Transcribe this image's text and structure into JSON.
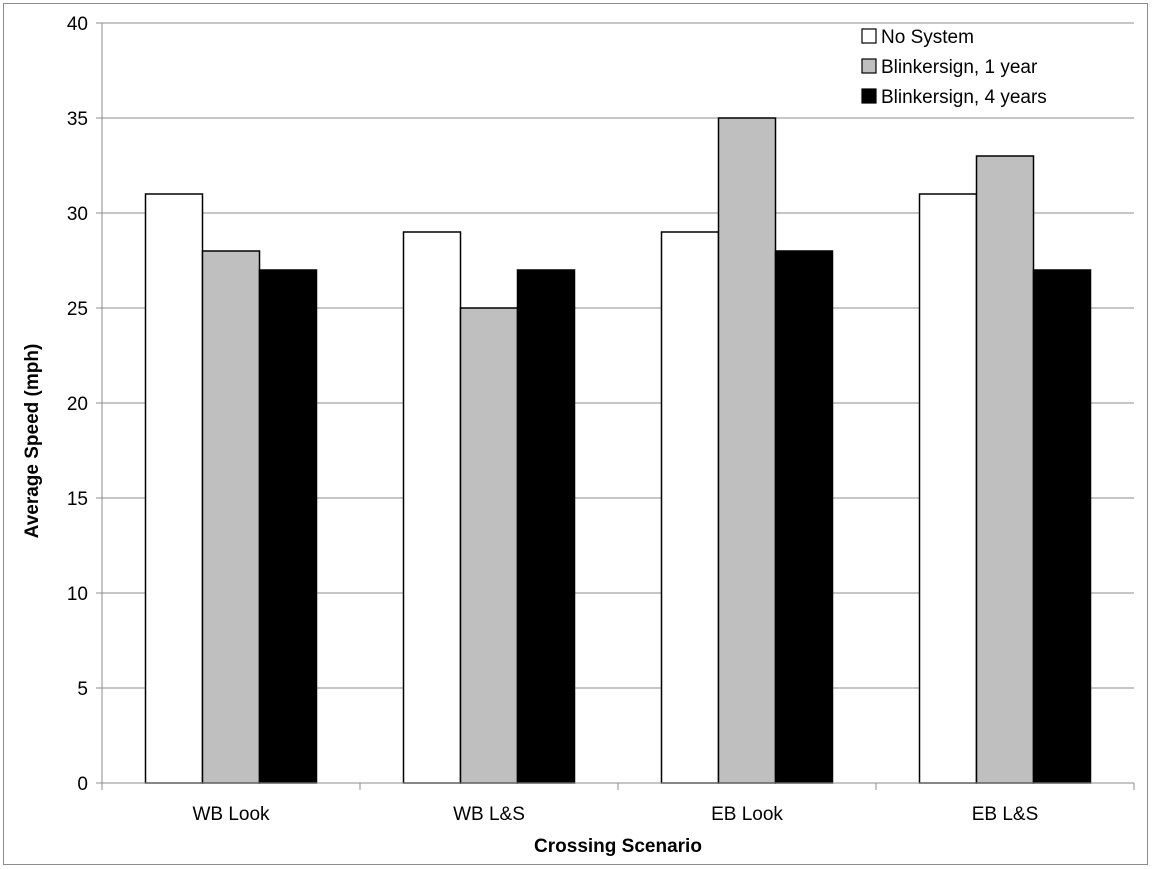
{
  "chart_data": {
    "type": "bar",
    "title": "",
    "xlabel": "Crossing Scenario",
    "ylabel": "Average Speed (mph)",
    "categories": [
      "WB Look",
      "WB L&S",
      "EB Look",
      "EB L&S"
    ],
    "ylim": [
      0,
      40
    ],
    "yticks": [
      0,
      5,
      10,
      15,
      20,
      25,
      30,
      35,
      40
    ],
    "grid": true,
    "legend_position": "top-right",
    "series": [
      {
        "name": "No System",
        "color": "#ffffff",
        "values": [
          31,
          29,
          29,
          31
        ]
      },
      {
        "name": "Blinkersign, 1 year",
        "color": "#bfbfbf",
        "values": [
          28,
          25,
          35,
          33
        ]
      },
      {
        "name": "Blinkersign, 4 years",
        "color": "#000000",
        "values": [
          27,
          27,
          28,
          27
        ]
      }
    ]
  }
}
